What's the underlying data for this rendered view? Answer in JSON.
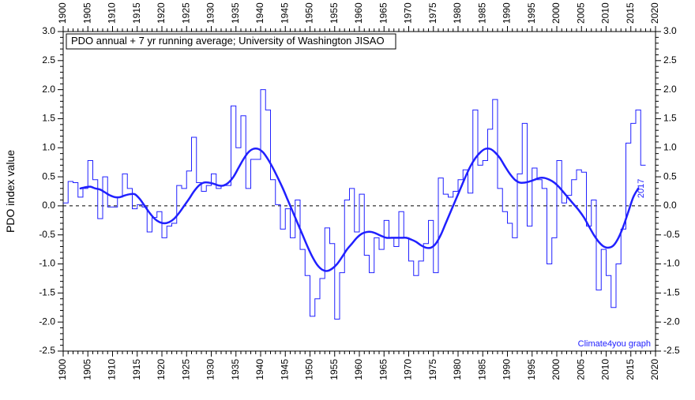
{
  "chart": {
    "type": "line",
    "title_line": "PDO annual + 7 yr running average; University of Washington JISAO",
    "ylabel": "PDO index value",
    "credit": "Climate4you graph",
    "end_year_label": "2017",
    "background_color": "#ffffff",
    "plot_border_color": "#000000",
    "zero_line_color": "#000000",
    "zero_line_dash": "4 4",
    "step_color": "#2020ff",
    "step_linewidth": 1,
    "smooth_color": "#2020ff",
    "smooth_linewidth": 2.5,
    "tick_font_size": 12,
    "title_font_size": 13,
    "ylabel_font_size": 14,
    "x": {
      "min": 1900,
      "max": 2020,
      "major_step": 5,
      "minor_step": 1,
      "ticks": [
        1900,
        1905,
        1910,
        1915,
        1920,
        1925,
        1930,
        1935,
        1940,
        1945,
        1950,
        1955,
        1960,
        1965,
        1970,
        1975,
        1980,
        1985,
        1990,
        1995,
        2000,
        2005,
        2010,
        2015,
        2020
      ]
    },
    "y": {
      "min": -2.5,
      "max": 3.0,
      "step": 0.5,
      "ticks": [
        -2.5,
        -2.0,
        -1.5,
        -1.0,
        -0.5,
        0.0,
        0.5,
        1.0,
        1.5,
        2.0,
        2.5,
        3.0
      ]
    },
    "annual": {
      "start_year": 1900,
      "values": [
        0.05,
        0.42,
        0.4,
        0.15,
        0.3,
        0.78,
        0.45,
        -0.22,
        0.5,
        -0.02,
        -0.02,
        0.15,
        0.55,
        0.3,
        -0.05,
        0.02,
        -0.02,
        -0.45,
        -0.2,
        -0.1,
        -0.55,
        -0.35,
        -0.3,
        0.35,
        0.3,
        0.6,
        1.18,
        0.4,
        0.25,
        0.35,
        0.55,
        0.3,
        0.35,
        0.35,
        1.72,
        1.0,
        1.55,
        0.3,
        0.8,
        0.8,
        2.0,
        1.65,
        0.45,
        0.02,
        -0.4,
        -0.05,
        -0.55,
        0.1,
        -0.75,
        -1.2,
        -1.9,
        -1.6,
        -1.25,
        -0.38,
        -0.65,
        -1.95,
        -1.15,
        0.1,
        0.3,
        -0.45,
        0.2,
        -0.85,
        -1.15,
        -0.55,
        -0.75,
        -0.25,
        -0.55,
        -0.7,
        -0.1,
        -0.55,
        -0.95,
        -1.2,
        -0.95,
        -0.65,
        -0.25,
        -1.15,
        0.48,
        0.2,
        0.15,
        0.25,
        0.45,
        0.62,
        0.22,
        1.65,
        0.7,
        0.78,
        1.32,
        1.83,
        0.3,
        -0.1,
        -0.3,
        -0.55,
        0.55,
        1.42,
        -0.35,
        0.65,
        0.45,
        0.3,
        -1.0,
        -0.55,
        0.78,
        0.05,
        0.18,
        0.45,
        0.62,
        0.58,
        -0.35,
        0.1,
        -1.45,
        -0.75,
        -1.2,
        -1.75,
        -1.0,
        -0.4,
        1.08,
        1.42,
        1.65,
        0.7
      ]
    },
    "smooth": {
      "start_year": 1903,
      "values": [
        0.3,
        0.32,
        0.33,
        0.3,
        0.28,
        0.23,
        0.18,
        0.15,
        0.15,
        0.18,
        0.2,
        0.2,
        0.12,
        0.0,
        -0.12,
        -0.22,
        -0.28,
        -0.3,
        -0.28,
        -0.22,
        -0.12,
        0.0,
        0.12,
        0.25,
        0.35,
        0.4,
        0.4,
        0.38,
        0.35,
        0.35,
        0.4,
        0.5,
        0.65,
        0.8,
        0.92,
        0.98,
        0.98,
        0.92,
        0.8,
        0.65,
        0.48,
        0.3,
        0.1,
        -0.1,
        -0.3,
        -0.5,
        -0.7,
        -0.88,
        -1.02,
        -1.1,
        -1.12,
        -1.08,
        -1.0,
        -0.88,
        -0.75,
        -0.65,
        -0.55,
        -0.48,
        -0.45,
        -0.45,
        -0.48,
        -0.52,
        -0.55,
        -0.55,
        -0.55,
        -0.55,
        -0.55,
        -0.58,
        -0.62,
        -0.68,
        -0.72,
        -0.72,
        -0.65,
        -0.5,
        -0.3,
        -0.1,
        0.1,
        0.3,
        0.5,
        0.68,
        0.82,
        0.92,
        0.98,
        0.98,
        0.92,
        0.82,
        0.68,
        0.55,
        0.45,
        0.4,
        0.4,
        0.42,
        0.45,
        0.48,
        0.48,
        0.45,
        0.4,
        0.32,
        0.22,
        0.12,
        0.02,
        -0.08,
        -0.2,
        -0.35,
        -0.5,
        -0.62,
        -0.7,
        -0.72,
        -0.68,
        -0.55,
        -0.35,
        -0.1,
        0.15,
        0.3
      ]
    }
  }
}
